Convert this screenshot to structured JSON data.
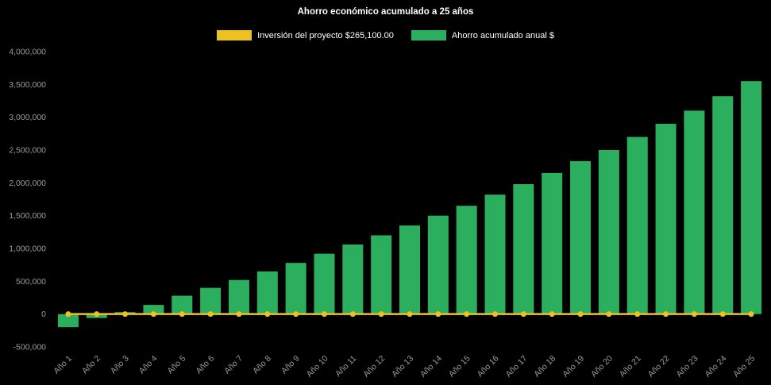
{
  "page": {
    "background_color": "#000000",
    "text_color": "#ffffff",
    "axis_label_color": "#9b9b9b"
  },
  "chart_data": {
    "type": "bar",
    "title": "Ahorro económico acumulado a 25 años",
    "xlabel": "",
    "ylabel": "",
    "categories": [
      "Año 1",
      "Año 2",
      "Año 3",
      "Año 4",
      "Año 5",
      "Año 6",
      "Año 7",
      "Año 8",
      "Año 9",
      "Año 10",
      "Año 11",
      "Año 12",
      "Año 13",
      "Año 14",
      "Año 15",
      "Año 16",
      "Año 17",
      "Año 18",
      "Año 19",
      "Año 20",
      "Año 21",
      "Año 22",
      "Año 23",
      "Año 24",
      "Año 25"
    ],
    "series": [
      {
        "name": "Inversión del proyecto $265,100.00",
        "type": "line",
        "color": "#edc120",
        "values": [
          0,
          0,
          0,
          0,
          0,
          0,
          0,
          0,
          0,
          0,
          0,
          0,
          0,
          0,
          0,
          0,
          0,
          0,
          0,
          0,
          0,
          0,
          0,
          0,
          0
        ]
      },
      {
        "name": "Ahorro acumulado anual $",
        "type": "bar",
        "color": "#2bae5e",
        "values": [
          -200000,
          -60000,
          30000,
          140000,
          280000,
          400000,
          520000,
          650000,
          780000,
          920000,
          1060000,
          1200000,
          1350000,
          1500000,
          1650000,
          1820000,
          1980000,
          2150000,
          2330000,
          2500000,
          2700000,
          2900000,
          3100000,
          3320000,
          3550000
        ]
      }
    ],
    "ylim": [
      -500000,
      4000000
    ],
    "y_ticks": [
      {
        "v": 4000000,
        "label": "4,000,000"
      },
      {
        "v": 3500000,
        "label": "3,500,000"
      },
      {
        "v": 3000000,
        "label": "3,000,000"
      },
      {
        "v": 2500000,
        "label": "2,500,000"
      },
      {
        "v": 2000000,
        "label": "2,000,000"
      },
      {
        "v": 1500000,
        "label": "1,500,000"
      },
      {
        "v": 1000000,
        "label": "1,000,000"
      },
      {
        "v": 500000,
        "label": "500,000"
      },
      {
        "v": 0,
        "label": "0"
      },
      {
        "v": -500000,
        "label": "-500,000"
      }
    ],
    "grid": false,
    "legend_position": "top",
    "x_label_rotation": -45
  }
}
